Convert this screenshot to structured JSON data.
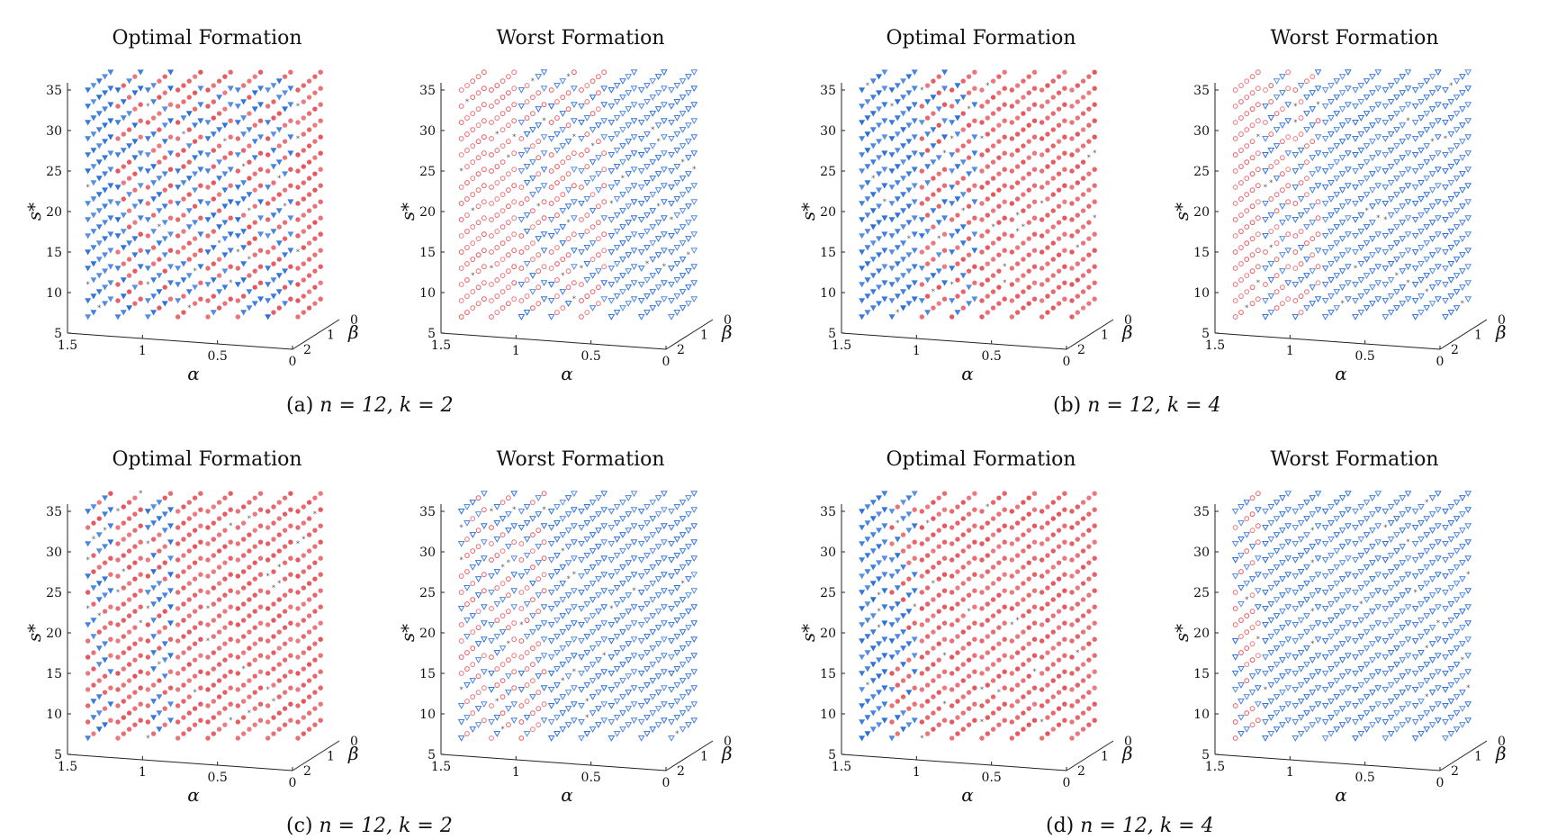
{
  "captions": [
    {
      "label": "(a)",
      "math": "n = 12, k = 2"
    },
    {
      "label": "(b)",
      "math": "n = 12, k = 4"
    },
    {
      "label": "(c)",
      "math": "n = 12, k = 2"
    },
    {
      "label": "(d)",
      "math": "n = 12, k = 4"
    }
  ],
  "chart_data": [
    {
      "panel": "a",
      "type": "scatter",
      "subtype": "3d-scatter",
      "title": "Optimal Formation",
      "xlabel": "α",
      "ylabel": "s*",
      "zlabel": "β",
      "alpha_ticks": [
        "1.5",
        "1",
        "0.5",
        "0"
      ],
      "s_ticks": [
        "5",
        "10",
        "15",
        "20",
        "25",
        "30",
        "35"
      ],
      "beta_ticks": [
        "0",
        "1",
        "2"
      ],
      "alpha_range": [
        0,
        1.5
      ],
      "s_range": [
        5,
        35
      ],
      "beta_range": [
        0,
        2
      ],
      "marker_style": "filled",
      "alpha_columns": [
        1.4,
        1.2,
        1.0,
        0.8,
        0.6,
        0.4,
        0.2,
        0.0
      ],
      "column_marker": [
        "triangle",
        "mixed",
        "mixed",
        "mixed",
        "mixed",
        "mixed",
        "mixed",
        "circle"
      ],
      "colors": {
        "circle": "#e5555c",
        "triangle": "#2a6fd9",
        "star": "#555555"
      }
    },
    {
      "panel": "a",
      "type": "scatter",
      "subtype": "3d-scatter",
      "title": "Worst Formation",
      "xlabel": "α",
      "ylabel": "s*",
      "zlabel": "β",
      "alpha_ticks": [
        "1.5",
        "1",
        "0.5",
        "0"
      ],
      "s_ticks": [
        "5",
        "10",
        "15",
        "20",
        "25",
        "30",
        "35"
      ],
      "beta_ticks": [
        "0",
        "1",
        "2"
      ],
      "alpha_range": [
        0,
        1.5
      ],
      "s_range": [
        5,
        35
      ],
      "beta_range": [
        0,
        2
      ],
      "marker_style": "open",
      "alpha_columns": [
        1.4,
        1.2,
        1.0,
        0.8,
        0.6,
        0.4,
        0.2,
        0.0
      ],
      "column_marker": [
        "circle",
        "circle",
        "mixed",
        "mixed",
        "mixed",
        "triangle",
        "triangle",
        "triangle"
      ],
      "colors": {
        "circle": "#e5555c",
        "triangle": "#2a6fd9",
        "star": "#555555"
      }
    },
    {
      "panel": "b",
      "type": "scatter",
      "subtype": "3d-scatter",
      "title": "Optimal Formation",
      "xlabel": "α",
      "ylabel": "s*",
      "zlabel": "β",
      "alpha_ticks": [
        "1.5",
        "1",
        "0.5",
        "0"
      ],
      "s_ticks": [
        "5",
        "10",
        "15",
        "20",
        "25",
        "30",
        "35"
      ],
      "beta_ticks": [
        "0",
        "1",
        "2"
      ],
      "alpha_range": [
        0,
        1.5
      ],
      "s_range": [
        5,
        35
      ],
      "beta_range": [
        0,
        2
      ],
      "marker_style": "filled",
      "alpha_columns": [
        1.4,
        1.2,
        1.0,
        0.8,
        0.6,
        0.4,
        0.2,
        0.0
      ],
      "column_marker": [
        "triangle",
        "triangle",
        "mixed",
        "mixed",
        "circle",
        "circle",
        "circle",
        "circle"
      ],
      "colors": {
        "circle": "#e5555c",
        "triangle": "#2a6fd9",
        "star": "#555555"
      }
    },
    {
      "panel": "b",
      "type": "scatter",
      "subtype": "3d-scatter",
      "title": "Worst Formation",
      "xlabel": "α",
      "ylabel": "s*",
      "zlabel": "β",
      "alpha_ticks": [
        "1.5",
        "1",
        "0.5",
        "0"
      ],
      "s_ticks": [
        "5",
        "10",
        "15",
        "20",
        "25",
        "30",
        "35"
      ],
      "beta_ticks": [
        "0",
        "1",
        "2"
      ],
      "alpha_range": [
        0,
        1.5
      ],
      "s_range": [
        5,
        35
      ],
      "beta_range": [
        0,
        2
      ],
      "marker_style": "open",
      "alpha_columns": [
        1.4,
        1.2,
        1.0,
        0.8,
        0.6,
        0.4,
        0.2,
        0.0
      ],
      "column_marker": [
        "circle",
        "mixed",
        "mixed",
        "triangle",
        "triangle",
        "triangle",
        "triangle",
        "triangle"
      ],
      "colors": {
        "circle": "#e5555c",
        "triangle": "#2a6fd9",
        "star": "#555555"
      }
    },
    {
      "panel": "c",
      "type": "scatter",
      "subtype": "3d-scatter",
      "title": "Optimal Formation",
      "xlabel": "α",
      "ylabel": "s*",
      "zlabel": "β",
      "alpha_ticks": [
        "1.5",
        "1",
        "0.5",
        "0"
      ],
      "s_ticks": [
        "5",
        "10",
        "15",
        "20",
        "25",
        "30",
        "35"
      ],
      "beta_ticks": [
        "0",
        "1",
        "2"
      ],
      "alpha_range": [
        0,
        1.5
      ],
      "s_range": [
        5,
        35
      ],
      "beta_range": [
        0,
        2
      ],
      "marker_style": "filled",
      "alpha_columns": [
        1.4,
        1.2,
        1.0,
        0.8,
        0.6,
        0.4,
        0.2,
        0.0
      ],
      "column_marker": [
        "mixed",
        "circle",
        "mixed",
        "circle",
        "circle",
        "circle",
        "circle",
        "circle"
      ],
      "colors": {
        "circle": "#e5555c",
        "triangle": "#2a6fd9",
        "star": "#555555"
      }
    },
    {
      "panel": "c",
      "type": "scatter",
      "subtype": "3d-scatter",
      "title": "Worst Formation",
      "xlabel": "α",
      "ylabel": "s*",
      "zlabel": "β",
      "alpha_ticks": [
        "1.5",
        "1",
        "0.5",
        "0"
      ],
      "s_ticks": [
        "5",
        "10",
        "15",
        "20",
        "25",
        "30",
        "35"
      ],
      "beta_ticks": [
        "0",
        "1",
        "2"
      ],
      "alpha_range": [
        0,
        1.5
      ],
      "s_range": [
        5,
        35
      ],
      "beta_range": [
        0,
        2
      ],
      "marker_style": "open",
      "alpha_columns": [
        1.4,
        1.2,
        1.0,
        0.8,
        0.6,
        0.4,
        0.2,
        0.0
      ],
      "column_marker": [
        "mixed",
        "mixed",
        "mixed",
        "triangle",
        "triangle",
        "triangle",
        "triangle",
        "triangle"
      ],
      "colors": {
        "circle": "#e5555c",
        "triangle": "#2a6fd9",
        "star": "#555555"
      }
    },
    {
      "panel": "d",
      "type": "scatter",
      "subtype": "3d-scatter",
      "title": "Optimal Formation",
      "xlabel": "α",
      "ylabel": "s*",
      "zlabel": "β",
      "alpha_ticks": [
        "1.5",
        "1",
        "0.5",
        "0"
      ],
      "s_ticks": [
        "5",
        "10",
        "15",
        "20",
        "25",
        "30",
        "35"
      ],
      "beta_ticks": [
        "0",
        "1",
        "2"
      ],
      "alpha_range": [
        0,
        1.5
      ],
      "s_range": [
        5,
        35
      ],
      "beta_range": [
        0,
        2
      ],
      "marker_style": "filled",
      "alpha_columns": [
        1.4,
        1.2,
        1.0,
        0.8,
        0.6,
        0.4,
        0.2,
        0.0
      ],
      "column_marker": [
        "triangle",
        "mixed",
        "circle",
        "circle",
        "circle",
        "circle",
        "circle",
        "circle"
      ],
      "colors": {
        "circle": "#e5555c",
        "triangle": "#2a6fd9",
        "star": "#555555"
      }
    },
    {
      "panel": "d",
      "type": "scatter",
      "subtype": "3d-scatter",
      "title": "Worst Formation",
      "xlabel": "α",
      "ylabel": "s*",
      "zlabel": "β",
      "alpha_ticks": [
        "1.5",
        "1",
        "0.5",
        "0"
      ],
      "s_ticks": [
        "5",
        "10",
        "15",
        "20",
        "25",
        "30",
        "35"
      ],
      "beta_ticks": [
        "0",
        "1",
        "2"
      ],
      "alpha_range": [
        0,
        1.5
      ],
      "s_range": [
        5,
        35
      ],
      "beta_range": [
        0,
        2
      ],
      "marker_style": "open",
      "alpha_columns": [
        1.4,
        1.2,
        1.0,
        0.8,
        0.6,
        0.4,
        0.2,
        0.0
      ],
      "column_marker": [
        "mixed",
        "triangle",
        "triangle",
        "triangle",
        "triangle",
        "triangle",
        "triangle",
        "triangle"
      ],
      "colors": {
        "circle": "#e5555c",
        "triangle": "#2a6fd9",
        "star": "#555555"
      }
    }
  ]
}
